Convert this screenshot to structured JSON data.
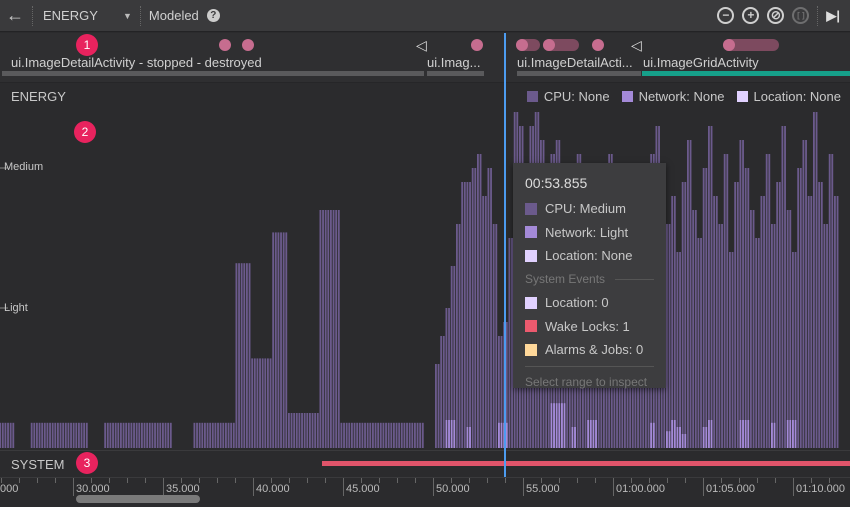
{
  "toolbar": {
    "back_icon": "arrow-left-icon",
    "profiler": "ENERGY",
    "mode": "Modeled",
    "help_icon": "question-circle-icon",
    "zoom_out_icon": "minus-circle-icon",
    "zoom_in_icon": "plus-circle-icon",
    "reset_zoom_icon": "reset-circle-icon",
    "zoom_selection_icon": "brackets-icon",
    "go_live_icon": "skip-to-end-icon"
  },
  "badges": [
    "1",
    "2",
    "3"
  ],
  "activities": [
    {
      "label": "ui.ImageDetailActivity - stopped - destroyed"
    },
    {
      "label": "ui.Imag..."
    },
    {
      "label": "ui.ImageDetailActi..."
    },
    {
      "label": "ui.ImageGridActivity"
    }
  ],
  "energy": {
    "title": "ENERGY",
    "y_labels": [
      "Medium",
      "Light"
    ],
    "legend": [
      {
        "label": "CPU: None",
        "color": "#6b5a8c"
      },
      {
        "label": "Network: None",
        "color": "#a48ad8"
      },
      {
        "label": "Location: None",
        "color": "#e1d1ff"
      }
    ]
  },
  "tooltip": {
    "time": "00:53.855",
    "rows": [
      {
        "label": "CPU: Medium",
        "color": "#6b5a8c"
      },
      {
        "label": "Network: Light",
        "color": "#a48ad8"
      },
      {
        "label": "Location: None",
        "color": "#e1d1ff"
      }
    ],
    "section": "System Events",
    "events": [
      {
        "label": "Location: 0",
        "color": "#e1d1ff"
      },
      {
        "label": "Wake Locks: 1",
        "color": "#ec5a6e"
      },
      {
        "label": "Alarms & Jobs: 0",
        "color": "#ffd89a"
      }
    ],
    "hint": "Select range to inspect"
  },
  "system": {
    "title": "SYSTEM",
    "wake_lock_color": "#e0546a"
  },
  "axis": {
    "labels": [
      "000",
      "30.000",
      "35.000",
      "40.000",
      "45.000",
      "50.000",
      "55.000",
      "01:00.000",
      "01:05.000",
      "01:10.000"
    ]
  },
  "chart_data": {
    "type": "bar",
    "x_unit": "seconds",
    "x_start": 26.25,
    "x_step": 0.25,
    "y_levels": {
      "None": 0,
      "Light": 1,
      "Medium": 2
    },
    "series": [
      {
        "name": "CPU",
        "color": "#6b5a8c",
        "values": [
          0.18,
          0.18,
          0.18,
          0,
          0,
          0,
          0.18,
          0.18,
          0.18,
          0.18,
          0.18,
          0.18,
          0.18,
          0.18,
          0.18,
          0.18,
          0.18,
          0,
          0,
          0,
          0.18,
          0.18,
          0.18,
          0.18,
          0.18,
          0.18,
          0.18,
          0.18,
          0.18,
          0.18,
          0.18,
          0.18,
          0.18,
          0,
          0,
          0,
          0,
          0.18,
          0.18,
          0.18,
          0.18,
          0.18,
          0.18,
          0.18,
          0.18,
          1.32,
          1.32,
          1.32,
          0.64,
          0.64,
          0.64,
          0.64,
          1.54,
          1.54,
          1.54,
          0.25,
          0.25,
          0.25,
          0.25,
          0.25,
          0.25,
          1.7,
          1.7,
          1.7,
          1.7,
          0.18,
          0.18,
          0.18,
          0.18,
          0.18,
          0.18,
          0.18,
          0.18,
          0.18,
          0.18,
          0.18,
          0.18,
          0.18,
          0.18,
          0.18,
          0.18,
          0,
          0,
          0.6,
          0.8,
          1.0,
          1.3,
          1.6,
          1.9,
          1.9,
          2.0,
          2.1,
          1.8,
          2.0,
          1.6,
          0.8,
          0.9,
          1.5,
          2.4,
          2.3,
          2.0,
          2.3,
          2.4,
          2.2,
          1.9,
          2.1,
          2.2,
          1.7,
          1.2,
          1.8,
          2.1,
          1.9,
          1.5,
          1.3,
          1.6,
          1.9,
          2.1,
          1.7,
          1.4,
          1.8,
          2.0,
          1.5,
          1.3,
          1.7,
          2.1,
          2.3,
          2.0,
          1.6,
          1.8,
          1.4,
          1.9,
          2.2,
          1.7,
          1.5,
          2.0,
          2.3,
          1.8,
          1.6,
          2.1,
          1.4,
          1.9,
          2.2,
          2.0,
          1.7,
          1.5,
          1.8,
          2.1,
          1.6,
          1.9,
          2.3,
          1.7,
          1.4,
          2.0,
          2.2,
          1.8,
          2.4,
          1.9,
          1.6,
          2.1,
          1.8
        ]
      },
      {
        "name": "Network",
        "color": "#a48ad8",
        "values": [
          0,
          0,
          0,
          0,
          0,
          0,
          0,
          0,
          0,
          0,
          0,
          0,
          0,
          0,
          0,
          0,
          0,
          0,
          0,
          0,
          0,
          0,
          0,
          0,
          0,
          0,
          0,
          0,
          0,
          0,
          0,
          0,
          0,
          0,
          0,
          0,
          0,
          0,
          0,
          0,
          0,
          0,
          0,
          0,
          0,
          0,
          0,
          0,
          0,
          0,
          0,
          0,
          0,
          0,
          0,
          0,
          0,
          0,
          0,
          0,
          0,
          0,
          0,
          0,
          0,
          0,
          0,
          0,
          0,
          0,
          0,
          0,
          0,
          0,
          0,
          0,
          0,
          0,
          0,
          0,
          0,
          0,
          0,
          0,
          0,
          0.2,
          0.2,
          0,
          0,
          0.15,
          0,
          0,
          0,
          0,
          0,
          0.18,
          0.18,
          0,
          0,
          0,
          0,
          0,
          0,
          0,
          0,
          0.32,
          0.32,
          0.32,
          0,
          0.15,
          0,
          0,
          0.2,
          0.2,
          0,
          0,
          0,
          0,
          0,
          0,
          0,
          0,
          0,
          0,
          0.18,
          0,
          0,
          0.12,
          0.2,
          0.15,
          0.1,
          0,
          0,
          0,
          0.15,
          0.2,
          0,
          0,
          0,
          0,
          0,
          0.2,
          0.2,
          0,
          0,
          0,
          0,
          0.18,
          0,
          0,
          0.2,
          0.2,
          0,
          0
        ]
      }
    ]
  }
}
